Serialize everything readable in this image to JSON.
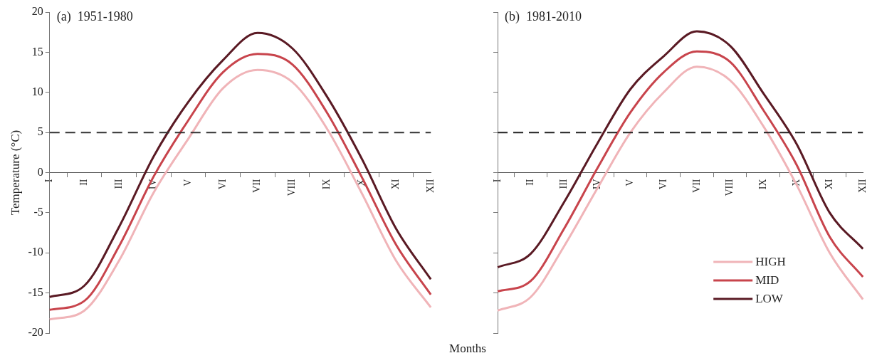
{
  "chart_data": [
    {
      "type": "line",
      "title": "(a)  1951-1980",
      "ylabel": "Temperature (°C)",
      "xlabel": "Months",
      "categories": [
        "I",
        "II",
        "III",
        "IV",
        "V",
        "VI",
        "VII",
        "VIII",
        "IX",
        "X",
        "XI",
        "XII"
      ],
      "ylim": [
        -20,
        20
      ],
      "yticks": [
        -20,
        -15,
        -10,
        -5,
        0,
        5,
        10,
        15,
        20
      ],
      "marker": "none",
      "legend": false,
      "series": [
        {
          "color": "#f0b4b8",
          "values": [
            -18.3,
            -17.2,
            -11,
            -2.5,
            4.2,
            10.5,
            12.8,
            11.3,
            5.5,
            -2.5,
            -11,
            -16.8
          ]
        },
        {
          "color": "#c8444c",
          "values": [
            -17.1,
            -16.0,
            -9.2,
            -0.5,
            6.5,
            12.5,
            14.8,
            13.5,
            7.5,
            -0.5,
            -9,
            -15.2
          ]
        },
        {
          "color": "#5a1a24",
          "values": [
            -15.5,
            -14.1,
            -6.8,
            2,
            8.8,
            14,
            17.4,
            15.5,
            9.5,
            1.8,
            -7,
            -13.3
          ]
        }
      ],
      "ref_lines": [
        {
          "axis": "y",
          "value": 5,
          "color": "#333333",
          "line_style": "dashed"
        }
      ]
    },
    {
      "type": "line",
      "title": "(b)  1981-2010",
      "categories": [
        "I",
        "II",
        "III",
        "IV",
        "V",
        "VI",
        "VII",
        "VIII",
        "IX",
        "X",
        "XI",
        "XII"
      ],
      "ylim": [
        -20,
        20
      ],
      "yticks": [
        -20,
        -15,
        -10,
        -5,
        0,
        5,
        10,
        15,
        20
      ],
      "tick_labels": "x",
      "marker": "none",
      "legend": "bottom right",
      "series": [
        {
          "name": "HIGH",
          "color": "#f0b4b8",
          "values": [
            -17.2,
            -15.5,
            -9.2,
            -2,
            5,
            10,
            13.2,
            11.5,
            5.8,
            -1.5,
            -10,
            -15.8
          ]
        },
        {
          "name": "MID",
          "color": "#c8444c",
          "values": [
            -14.8,
            -13.5,
            -7,
            0.5,
            7.5,
            12.5,
            15.1,
            13.8,
            7.8,
            1,
            -8,
            -13
          ]
        },
        {
          "name": "LOW",
          "color": "#5a1a24",
          "values": [
            -11.8,
            -10.1,
            -3.7,
            3.6,
            10.4,
            14.5,
            17.6,
            15.8,
            9.9,
            3.6,
            -5,
            -9.5
          ]
        }
      ],
      "ref_lines": [
        {
          "axis": "y",
          "value": 5,
          "color": "#222222",
          "line_style": "dashed"
        }
      ]
    }
  ]
}
